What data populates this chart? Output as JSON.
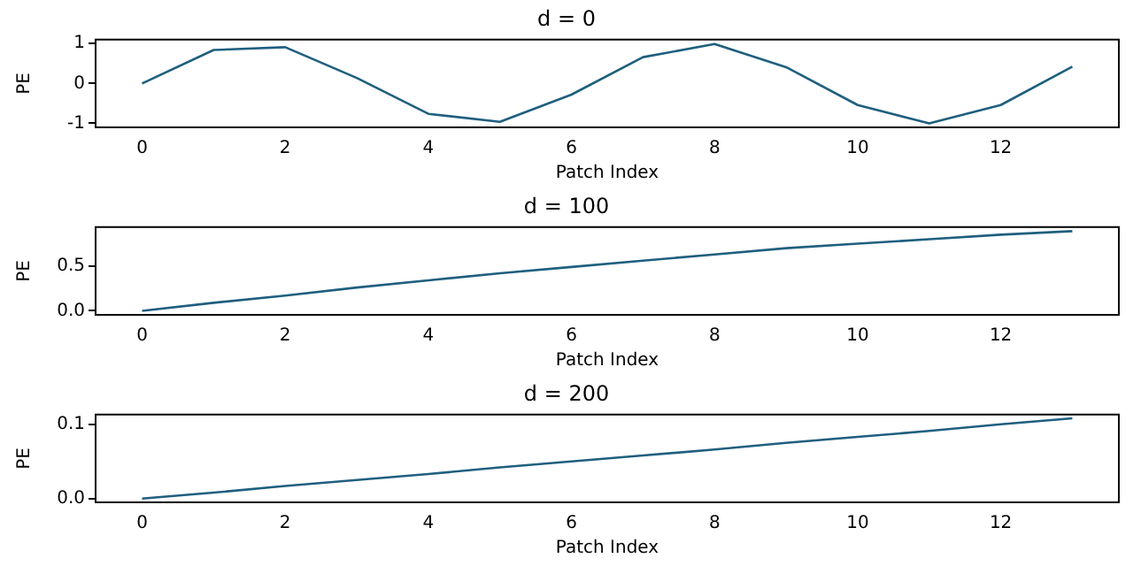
{
  "chart_data": [
    {
      "type": "line",
      "title": "d = 0",
      "xlabel": "Patch Index",
      "ylabel": "PE",
      "x": [
        0,
        1,
        2,
        3,
        4,
        5,
        6,
        7,
        8,
        9,
        10,
        11,
        12,
        13
      ],
      "xlim": [
        -0.65,
        13.65
      ],
      "xticks": [
        0,
        2,
        4,
        6,
        8,
        10,
        12
      ],
      "ylim": [
        -1.1,
        1.1
      ],
      "yticks": [
        -1,
        0,
        1
      ],
      "grid": false,
      "legend": false,
      "series": [
        {
          "color": "#1f5f7f",
          "values": [
            0,
            0.84,
            0.91,
            0.14,
            -0.76,
            -0.96,
            -0.28,
            0.66,
            0.99,
            0.41,
            -0.54,
            -1.0,
            -0.54,
            0.42
          ]
        }
      ]
    },
    {
      "type": "line",
      "title": "d = 100",
      "xlabel": "Patch Index",
      "ylabel": "PE",
      "x": [
        0,
        1,
        2,
        3,
        4,
        5,
        6,
        7,
        8,
        9,
        10,
        11,
        12,
        13
      ],
      "xlim": [
        -0.65,
        13.65
      ],
      "xticks": [
        0,
        2,
        4,
        6,
        8,
        10,
        12
      ],
      "ylim": [
        -0.045,
        0.935
      ],
      "yticks": [
        {
          "value": 0,
          "label": "0.0"
        },
        {
          "value": 0.5,
          "label": "0.5"
        }
      ],
      "grid": false,
      "legend": false,
      "series": [
        {
          "color": "#1f5f7f",
          "values": [
            0,
            0.09,
            0.17,
            0.26,
            0.34,
            0.42,
            0.49,
            0.56,
            0.63,
            0.7,
            0.75,
            0.8,
            0.85,
            0.89
          ]
        }
      ]
    },
    {
      "type": "line",
      "title": "d = 200",
      "xlabel": "Patch Index",
      "ylabel": "PE",
      "x": [
        0,
        1,
        2,
        3,
        4,
        5,
        6,
        7,
        8,
        9,
        10,
        11,
        12,
        13
      ],
      "xlim": [
        -0.65,
        13.65
      ],
      "xticks": [
        0,
        2,
        4,
        6,
        8,
        10,
        12
      ],
      "ylim": [
        -0.005,
        0.113
      ],
      "yticks": [
        {
          "value": 0,
          "label": "0.0"
        },
        {
          "value": 0.1,
          "label": "0.1"
        }
      ],
      "grid": false,
      "legend": false,
      "series": [
        {
          "color": "#1f5f7f",
          "values": [
            0,
            0.008,
            0.017,
            0.025,
            0.033,
            0.042,
            0.05,
            0.058,
            0.066,
            0.075,
            0.083,
            0.091,
            0.1,
            0.108
          ]
        }
      ]
    }
  ]
}
